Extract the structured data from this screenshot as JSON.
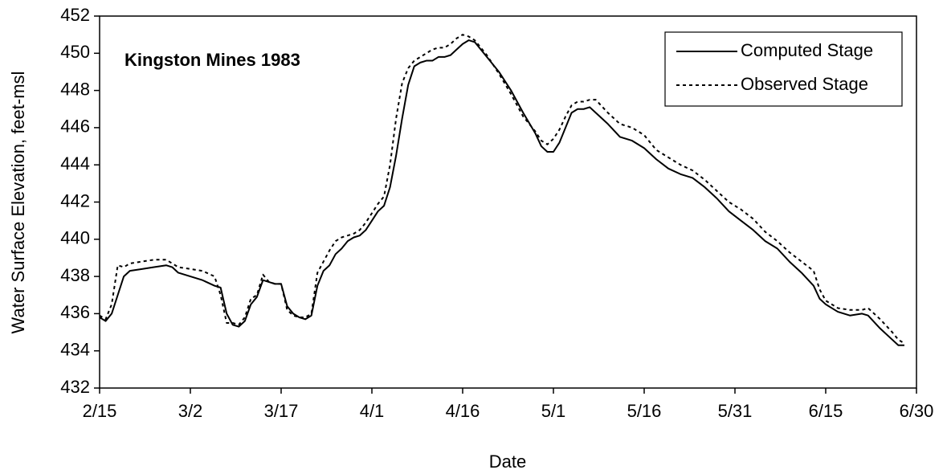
{
  "chart_data": {
    "type": "line",
    "annotation": "Kingston Mines 1983",
    "x_label": "Date",
    "y_label": "Water Surface Elevation, feet-msl",
    "xlim": [
      0,
      135
    ],
    "xticks": [
      {
        "value": 0,
        "label": "2/15"
      },
      {
        "value": 15,
        "label": "3/2"
      },
      {
        "value": 30,
        "label": "3/17"
      },
      {
        "value": 45,
        "label": "4/1"
      },
      {
        "value": 60,
        "label": "4/16"
      },
      {
        "value": 75,
        "label": "5/1"
      },
      {
        "value": 90,
        "label": "5/16"
      },
      {
        "value": 105,
        "label": "5/31"
      },
      {
        "value": 120,
        "label": "6/15"
      },
      {
        "value": 135,
        "label": "6/30"
      }
    ],
    "ylim": [
      432,
      452
    ],
    "yticks": [
      432,
      434,
      436,
      438,
      440,
      442,
      444,
      446,
      448,
      450,
      452
    ],
    "grid": false,
    "legend": "top-right",
    "x": [
      0,
      1,
      2,
      3,
      4,
      5,
      7,
      9,
      11,
      12,
      13,
      15,
      17,
      19,
      20,
      21,
      22,
      23,
      24,
      25,
      26,
      27,
      28,
      29,
      30,
      31,
      32,
      33,
      34,
      35,
      36,
      37,
      38,
      39,
      40,
      41,
      42,
      43,
      44,
      45,
      46,
      47,
      48,
      49,
      50,
      51,
      52,
      53,
      54,
      55,
      56,
      57,
      58,
      59,
      60,
      61,
      62,
      63,
      64,
      66,
      68,
      70,
      72,
      73,
      74,
      75,
      76,
      77,
      78,
      79,
      80,
      81,
      82,
      84,
      86,
      88,
      90,
      92,
      94,
      96,
      98,
      100,
      102,
      104,
      106,
      108,
      110,
      112,
      114,
      116,
      118,
      119,
      120,
      122,
      124,
      126,
      127,
      129,
      131,
      132,
      133
    ],
    "series": [
      {
        "name": "Computed Stage",
        "color": "#000000",
        "line_style": "solid",
        "values": [
          435.8,
          435.6,
          436.0,
          437.0,
          438.0,
          438.3,
          438.4,
          438.5,
          438.6,
          438.5,
          438.2,
          438.0,
          437.8,
          437.5,
          437.4,
          436.0,
          435.4,
          435.3,
          435.6,
          436.5,
          436.9,
          437.8,
          437.7,
          437.6,
          437.6,
          436.4,
          436.0,
          435.8,
          435.7,
          435.9,
          437.5,
          438.3,
          438.6,
          439.2,
          439.5,
          439.9,
          440.1,
          440.2,
          440.5,
          441.0,
          441.5,
          441.8,
          442.8,
          444.5,
          446.5,
          448.3,
          449.3,
          449.5,
          449.6,
          449.6,
          449.8,
          449.8,
          449.9,
          450.2,
          450.5,
          450.7,
          450.6,
          450.2,
          449.8,
          449.0,
          448.0,
          446.8,
          445.7,
          445.0,
          444.7,
          444.7,
          445.2,
          446.0,
          446.8,
          447.0,
          447.0,
          447.1,
          446.8,
          446.2,
          445.5,
          445.3,
          444.9,
          444.3,
          443.8,
          443.5,
          443.3,
          442.8,
          442.2,
          441.5,
          441.0,
          440.5,
          439.9,
          439.5,
          438.8,
          438.2,
          437.5,
          436.8,
          436.5,
          436.1,
          435.9,
          436.0,
          435.9,
          435.2,
          434.6,
          434.3,
          434.3
        ]
      },
      {
        "name": "Observed Stage",
        "color": "#000000",
        "line_style": "dotted",
        "values": [
          435.9,
          435.7,
          436.5,
          438.6,
          438.5,
          438.7,
          438.8,
          438.9,
          438.9,
          438.7,
          438.5,
          438.4,
          438.3,
          438.0,
          437.0,
          435.5,
          435.5,
          435.4,
          435.8,
          436.8,
          437.0,
          438.1,
          437.7,
          437.6,
          437.6,
          436.2,
          435.9,
          435.8,
          435.8,
          436.0,
          438.2,
          438.8,
          439.4,
          439.9,
          440.1,
          440.2,
          440.3,
          440.5,
          440.9,
          441.4,
          441.9,
          442.3,
          444.0,
          446.5,
          448.4,
          449.2,
          449.6,
          449.8,
          450.0,
          450.2,
          450.3,
          450.3,
          450.5,
          450.8,
          451.0,
          450.9,
          450.7,
          450.3,
          449.9,
          448.9,
          447.8,
          446.6,
          445.8,
          445.3,
          445.1,
          445.4,
          445.9,
          446.6,
          447.2,
          447.4,
          447.4,
          447.5,
          447.5,
          446.8,
          446.2,
          446.0,
          445.6,
          444.8,
          444.4,
          444.0,
          443.7,
          443.2,
          442.6,
          442.0,
          441.6,
          441.1,
          440.4,
          439.9,
          439.3,
          438.8,
          438.3,
          437.3,
          436.7,
          436.3,
          436.2,
          436.2,
          436.3,
          435.7,
          435.0,
          434.6,
          434.4
        ]
      }
    ]
  }
}
